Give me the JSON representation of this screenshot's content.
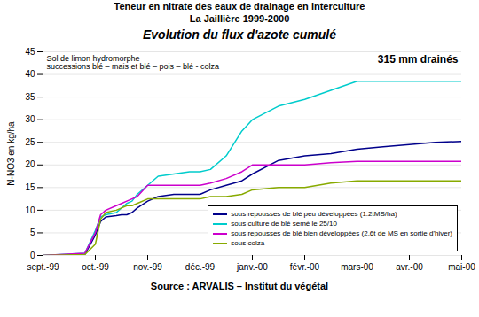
{
  "chart_data": {
    "type": "line",
    "title": "Evolution du flux d'azote cumulé",
    "subtitle": [
      "Teneur en nitrate des eaux de drainage en interculture",
      "La Jaillière 1999-2000"
    ],
    "source": "Source : ARVALIS – Institut du végétal",
    "ylabel": "N-NO3 en kg/ha",
    "annotations": [
      "315 mm drainés",
      "Sol de limon hydromorphe",
      "successions blé – mais et blé – pois – blé - colza"
    ],
    "x": [
      0,
      0.8,
      1.0,
      1.1,
      1.2,
      1.4,
      1.5,
      1.6,
      1.7,
      1.8,
      2.0,
      2.2,
      2.5,
      2.8,
      3.0,
      3.2,
      3.5,
      3.8,
      4.0,
      4.5,
      5.0,
      5.5,
      6.0,
      6.5,
      7.0,
      7.5,
      8.0
    ],
    "xlim": [
      0,
      8
    ],
    "xticks": [
      {
        "value": 0,
        "label": "sept.-99"
      },
      {
        "value": 1,
        "label": "oct.-99"
      },
      {
        "value": 2,
        "label": "nov.-99"
      },
      {
        "value": 3,
        "label": "déc.-99"
      },
      {
        "value": 4,
        "label": "janv.-00"
      },
      {
        "value": 5,
        "label": "févr.-00"
      },
      {
        "value": 6,
        "label": "mars-00"
      },
      {
        "value": 7,
        "label": "avr.-00"
      },
      {
        "value": 8,
        "label": "mai-00"
      }
    ],
    "ylim": [
      0,
      45
    ],
    "yticks": [
      0,
      5,
      10,
      15,
      20,
      25,
      30,
      35,
      40,
      45
    ],
    "grid": "y",
    "legend": "lower right",
    "series": [
      {
        "name": "sous repousses de blé peu développées (1.2tMS/ha)",
        "color": "#00008B",
        "values": [
          0,
          0.2,
          4.5,
          7.5,
          8.5,
          8.8,
          9.0,
          9.0,
          9.5,
          10.5,
          12.0,
          13.0,
          13.5,
          13.5,
          13.5,
          14.5,
          15.5,
          16.5,
          18.0,
          21.0,
          22.0,
          22.5,
          23.5,
          24.0,
          24.5,
          25.0,
          25.2
        ]
      },
      {
        "name": "sous culture de blé semé le 25/10",
        "color": "#00CCCC",
        "values": [
          0,
          0.5,
          5.5,
          8.5,
          9.0,
          9.5,
          10.5,
          11.5,
          12.0,
          13.5,
          15.5,
          17.5,
          18.0,
          18.5,
          18.5,
          19.0,
          22.0,
          27.5,
          30.0,
          33.0,
          34.5,
          36.5,
          38.5,
          38.5,
          38.5,
          38.5,
          38.5
        ]
      },
      {
        "name": "sous repousses de blé bien développées (2.6t de MS en sortie d'hiver)",
        "color": "#CC00CC",
        "values": [
          0,
          0.5,
          5.0,
          9.0,
          10.0,
          11.0,
          11.5,
          12.0,
          12.5,
          13.0,
          15.5,
          15.5,
          15.5,
          15.5,
          15.5,
          16.0,
          17.0,
          18.5,
          20.0,
          20.0,
          20.0,
          20.5,
          20.8,
          20.8,
          20.8,
          20.8,
          20.8
        ]
      },
      {
        "name": "sous colza",
        "color": "#88AA00",
        "values": [
          0,
          0.2,
          2.5,
          8.0,
          9.5,
          10.0,
          10.5,
          11.0,
          11.0,
          11.5,
          12.5,
          12.5,
          12.5,
          12.5,
          12.5,
          13.0,
          13.0,
          13.5,
          14.5,
          15.0,
          15.0,
          16.0,
          16.5,
          16.5,
          16.5,
          16.5,
          16.5
        ]
      }
    ]
  }
}
